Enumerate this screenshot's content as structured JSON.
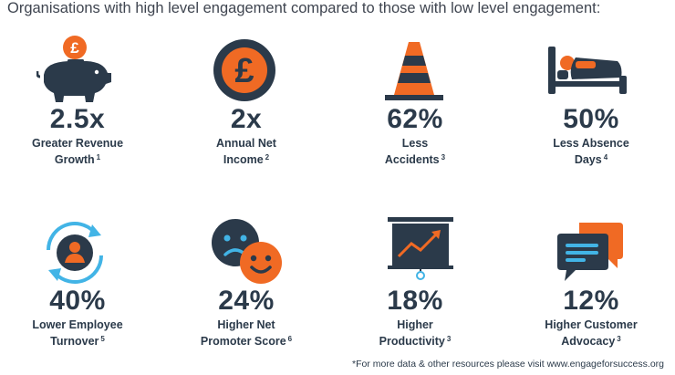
{
  "headline": "Organisations with high level engagement compared to those with low level engagement:",
  "stats": [
    {
      "value": "2.5x",
      "line1": "Greater Revenue",
      "line2": "Growth",
      "ref": "1",
      "icon": "piggy-bank-icon"
    },
    {
      "value": "2x",
      "line1": "Annual Net",
      "line2": "Income",
      "ref": "2",
      "icon": "pound-coin-icon"
    },
    {
      "value": "62%",
      "line1": "Less",
      "line2": "Accidents",
      "ref": "3",
      "icon": "traffic-cone-icon"
    },
    {
      "value": "50%",
      "line1": "Less Absence",
      "line2": "Days",
      "ref": "4",
      "icon": "sick-in-bed-icon"
    },
    {
      "value": "40%",
      "line1": "Lower Employee",
      "line2": "Turnover",
      "ref": "5",
      "icon": "employee-cycle-icon"
    },
    {
      "value": "24%",
      "line1": "Higher Net",
      "line2": "Promoter Score",
      "ref": "6",
      "icon": "sad-happy-faces-icon"
    },
    {
      "value": "18%",
      "line1": "Higher",
      "line2": "Productivity",
      "ref": "3",
      "icon": "rising-chart-board-icon"
    },
    {
      "value": "12%",
      "line1": "Higher Customer",
      "line2": "Advocacy",
      "ref": "3",
      "icon": "speech-bubbles-icon"
    }
  ],
  "footnote": "*For more data & other resources please visit www.engageforsuccess.org",
  "colors": {
    "navy": "#2b3a4a",
    "orange": "#f06a24"
  }
}
